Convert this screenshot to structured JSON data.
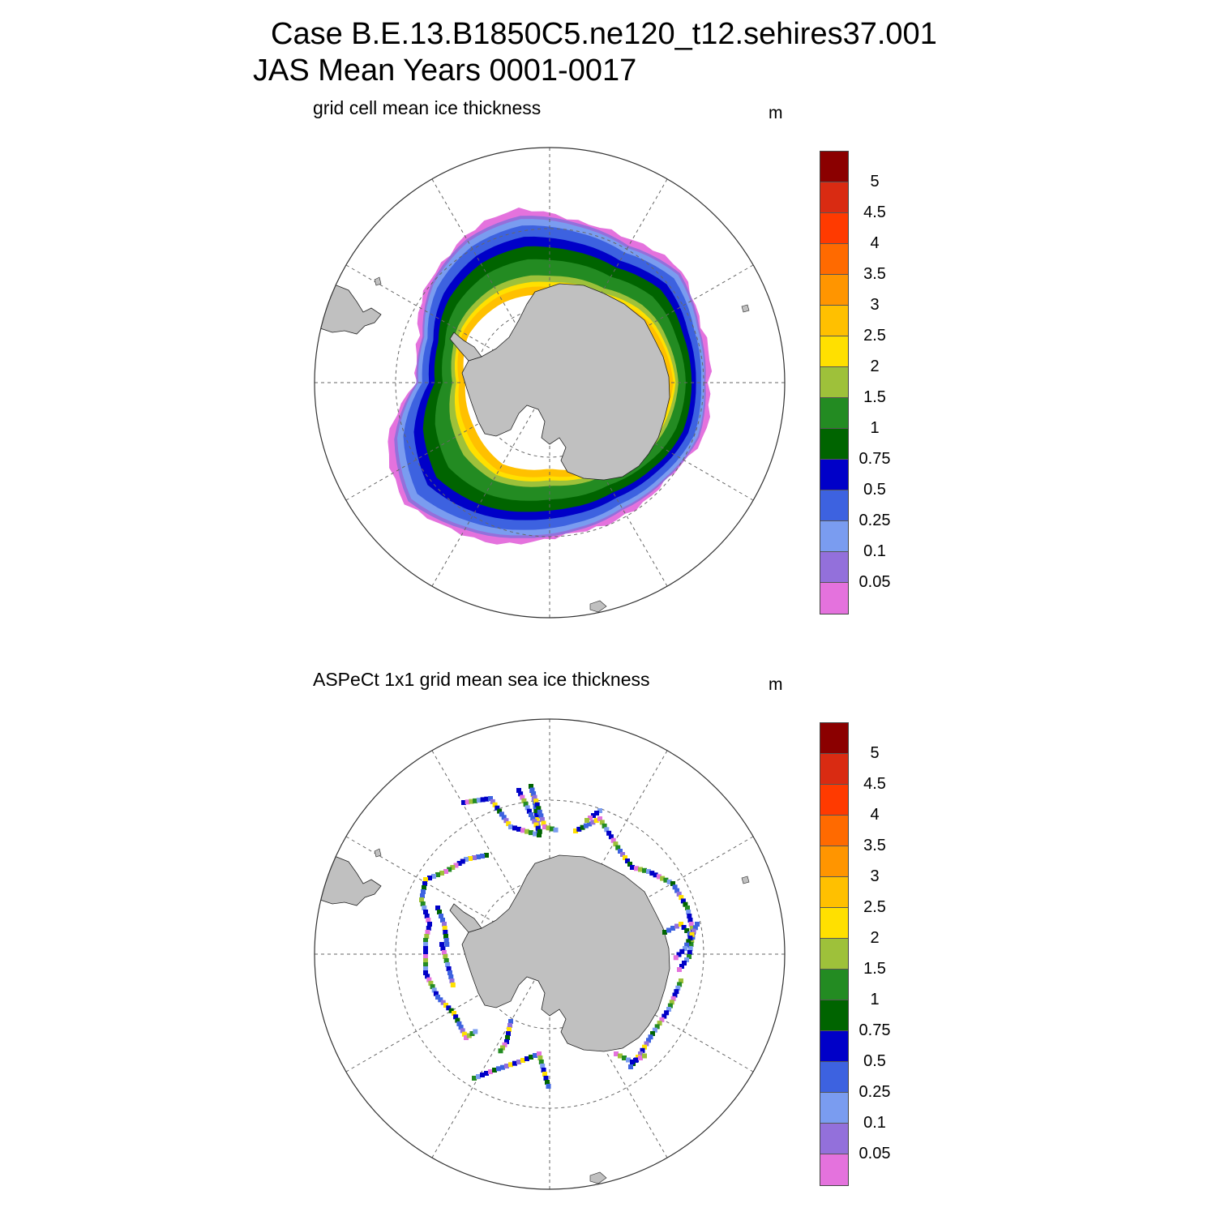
{
  "title_line1": "Case B.E.13.B1850C5.ne120_t12.sehires37.001",
  "title_line2": "JAS Mean   Years 0001-0017",
  "panels": [
    {
      "title": "grid cell mean ice thickness",
      "unit": "m"
    },
    {
      "title": "ASPeCt 1x1 grid mean sea ice thickness",
      "unit": "m"
    }
  ],
  "legend": {
    "labels": [
      "5",
      "4.5",
      "4",
      "3.5",
      "3",
      "2.5",
      "2",
      "1.5",
      "1",
      "0.75",
      "0.5",
      "0.25",
      "0.1",
      "0.05"
    ],
    "colors_top_to_bottom": [
      "#8b0000",
      "#d92b12",
      "#ff3a00",
      "#ff6a00",
      "#ff9500",
      "#ffc000",
      "#ffe000",
      "#9ec13a",
      "#238b22",
      "#006400",
      "#0000c8",
      "#3d62e0",
      "#7a9cf0",
      "#9370db",
      "#e472dd"
    ]
  },
  "colors": {
    "land": "#c0c0c0",
    "grid": "#666666",
    "model_zones": [
      "#e472dd",
      "#9370db",
      "#7a9cf0",
      "#3d62e0",
      "#0000c8",
      "#006400",
      "#238b22",
      "#9ec13a",
      "#ffe000",
      "#ffc000"
    ]
  }
}
